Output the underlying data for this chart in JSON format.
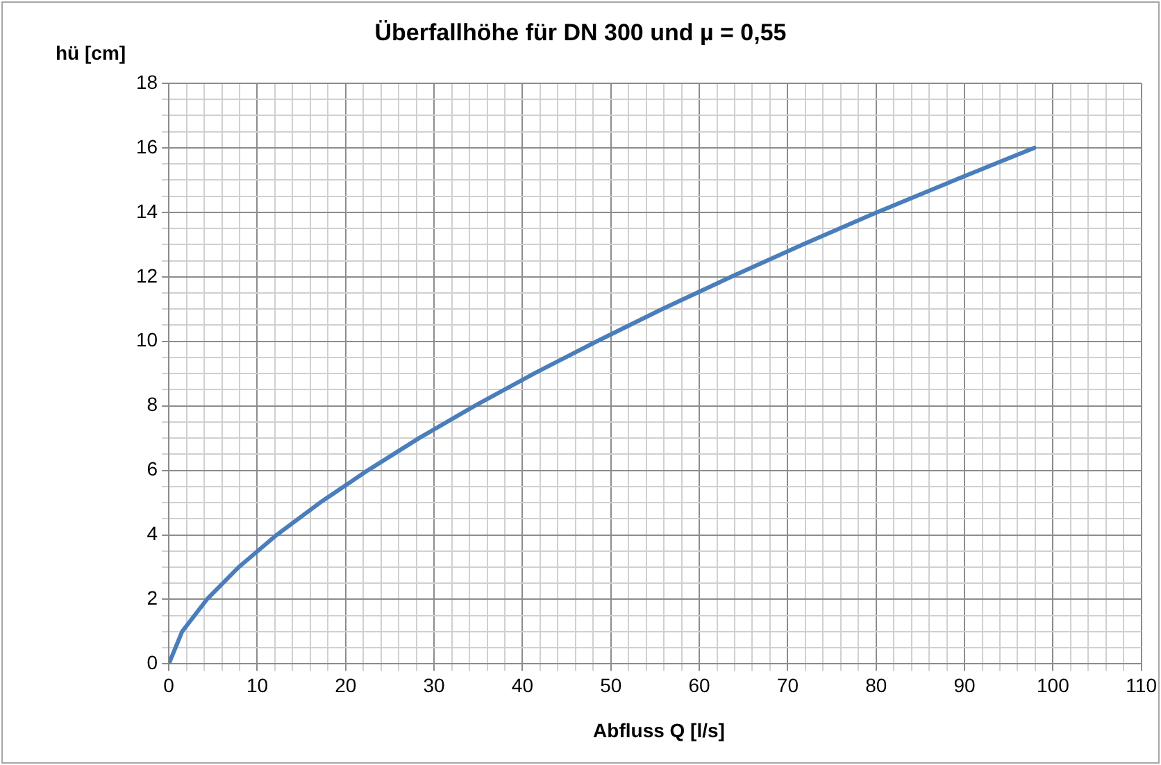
{
  "chart_data": {
    "type": "line",
    "title": "Überfallhöhe für DN 300 und µ = 0,55",
    "xlabel": "Abfluss Q [l/s]",
    "ylabel": "hü [cm]",
    "x": [
      0,
      1.5,
      4.3,
      7.9,
      12.2,
      17.1,
      22.5,
      28.3,
      34.6,
      41.3,
      48.4,
      55.8,
      63.6,
      71.7,
      80.1,
      88.9,
      97.9
    ],
    "series": [
      {
        "color": "#4a7ebb",
        "values": [
          0,
          1,
          2,
          3,
          4,
          5,
          6,
          7,
          8,
          9,
          10,
          11,
          12,
          13,
          14,
          15,
          16
        ]
      }
    ],
    "xlim": [
      0,
      110
    ],
    "xticks": [
      0,
      {
        "value": 2,
        "label": null
      },
      {
        "value": 4,
        "label": null
      },
      {
        "value": 6,
        "label": null
      },
      {
        "value": 8,
        "label": null
      },
      10,
      {
        "value": 12,
        "label": null
      },
      {
        "value": 14,
        "label": null
      },
      {
        "value": 16,
        "label": null
      },
      {
        "value": 18,
        "label": null
      },
      20,
      {
        "value": 22,
        "label": null
      },
      {
        "value": 24,
        "label": null
      },
      {
        "value": 26,
        "label": null
      },
      {
        "value": 28,
        "label": null
      },
      30,
      {
        "value": 32,
        "label": null
      },
      {
        "value": 34,
        "label": null
      },
      {
        "value": 36,
        "label": null
      },
      {
        "value": 38,
        "label": null
      },
      40,
      {
        "value": 42,
        "label": null
      },
      {
        "value": 44,
        "label": null
      },
      {
        "value": 46,
        "label": null
      },
      {
        "value": 48,
        "label": null
      },
      50,
      {
        "value": 52,
        "label": null
      },
      {
        "value": 54,
        "label": null
      },
      {
        "value": 56,
        "label": null
      },
      {
        "value": 58,
        "label": null
      },
      60,
      {
        "value": 62,
        "label": null
      },
      {
        "value": 64,
        "label": null
      },
      {
        "value": 66,
        "label": null
      },
      {
        "value": 68,
        "label": null
      },
      70,
      {
        "value": 72,
        "label": null
      },
      {
        "value": 74,
        "label": null
      },
      {
        "value": 76,
        "label": null
      },
      {
        "value": 78,
        "label": null
      },
      80,
      {
        "value": 82,
        "label": null
      },
      {
        "value": 84,
        "label": null
      },
      {
        "value": 86,
        "label": null
      },
      {
        "value": 88,
        "label": null
      },
      90,
      {
        "value": 92,
        "label": null
      },
      {
        "value": 94,
        "label": null
      },
      {
        "value": 96,
        "label": null
      },
      {
        "value": 98,
        "label": null
      },
      100,
      {
        "value": 102,
        "label": null
      },
      {
        "value": 104,
        "label": null
      },
      {
        "value": 106,
        "label": null
      },
      {
        "value": 108,
        "label": null
      },
      110
    ],
    "ylim": [
      0,
      18
    ],
    "yticks": [
      0,
      {
        "value": 0.5,
        "label": null
      },
      {
        "value": 1,
        "label": null
      },
      {
        "value": 1.5,
        "label": null
      },
      2,
      {
        "value": 2.5,
        "label": null
      },
      {
        "value": 3,
        "label": null
      },
      {
        "value": 3.5,
        "label": null
      },
      4,
      {
        "value": 4.5,
        "label": null
      },
      {
        "value": 5,
        "label": null
      },
      {
        "value": 5.5,
        "label": null
      },
      6,
      {
        "value": 6.5,
        "label": null
      },
      {
        "value": 7,
        "label": null
      },
      {
        "value": 7.5,
        "label": null
      },
      8,
      {
        "value": 8.5,
        "label": null
      },
      {
        "value": 9,
        "label": null
      },
      {
        "value": 9.5,
        "label": null
      },
      10,
      {
        "value": 10.5,
        "label": null
      },
      {
        "value": 11,
        "label": null
      },
      {
        "value": 11.5,
        "label": null
      },
      12,
      {
        "value": 12.5,
        "label": null
      },
      {
        "value": 13,
        "label": null
      },
      {
        "value": 13.5,
        "label": null
      },
      14,
      {
        "value": 14.5,
        "label": null
      },
      {
        "value": 15,
        "label": null
      },
      {
        "value": 15.5,
        "label": null
      },
      16,
      {
        "value": 16.5,
        "label": null
      },
      {
        "value": 17,
        "label": null
      },
      {
        "value": 17.5,
        "label": null
      },
      18
    ],
    "grid": true,
    "legend": false,
    "marker": "none",
    "line_style": "solid"
  }
}
